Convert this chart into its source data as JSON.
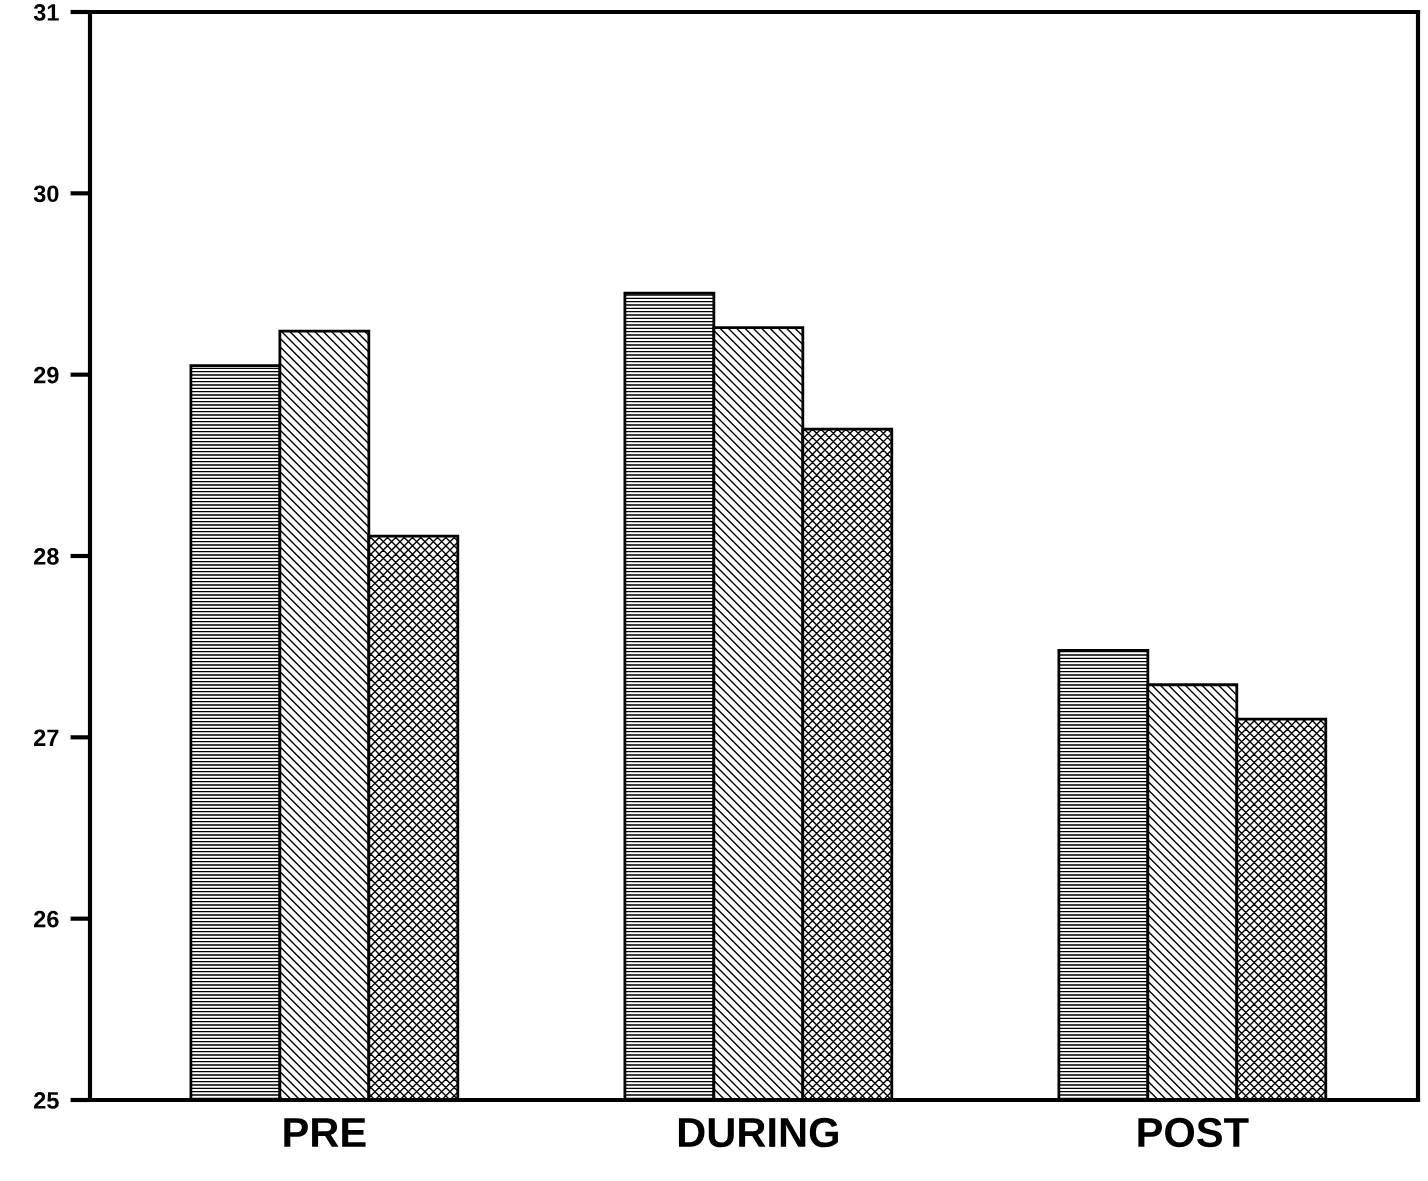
{
  "chart_data": {
    "type": "bar",
    "categories": [
      "PRE",
      "DURING",
      "POST"
    ],
    "series": [
      {
        "color": "#000000",
        "values": [
          29.05,
          29.45,
          27.48
        ]
      },
      {
        "color": "#000000",
        "values": [
          29.24,
          29.26,
          27.29
        ]
      },
      {
        "color": "#000000",
        "values": [
          28.11,
          28.7,
          27.1
        ]
      }
    ],
    "ylim": [
      25,
      31
    ],
    "yticks": [
      25,
      26,
      27,
      28,
      29,
      30,
      31
    ],
    "grid": false
  }
}
